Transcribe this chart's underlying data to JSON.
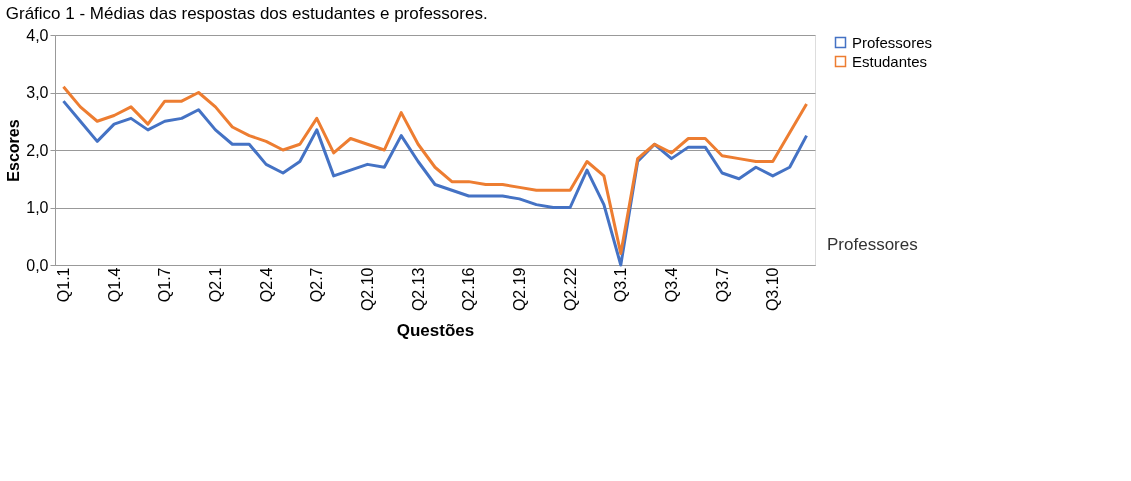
{
  "chart_data": {
    "type": "line",
    "title": "Gráfico 1 - Médias das respostas dos estudantes e professores.",
    "xlabel": "Questões",
    "ylabel": "Escores",
    "categories": [
      "Q1.1",
      null,
      null,
      "Q1.4",
      null,
      null,
      "Q1.7",
      null,
      null,
      "Q2.1",
      null,
      null,
      "Q2.4",
      null,
      null,
      "Q2.7",
      null,
      null,
      "Q2.10",
      null,
      null,
      "Q2.13",
      null,
      null,
      "Q2.16",
      null,
      null,
      "Q2.19",
      null,
      null,
      "Q2.22",
      null,
      null,
      "Q3.1",
      null,
      null,
      "Q3.4",
      null,
      null,
      "Q3.7",
      null,
      null,
      "Q3.10",
      null,
      null
    ],
    "series": [
      {
        "name": "Professores",
        "color": "#4472c4",
        "values": [
          2.85,
          2.5,
          2.15,
          2.45,
          2.55,
          2.35,
          2.5,
          2.55,
          2.7,
          2.35,
          2.1,
          2.1,
          1.75,
          1.6,
          1.8,
          2.35,
          1.55,
          1.65,
          1.75,
          1.7,
          2.25,
          1.8,
          1.4,
          1.3,
          1.2,
          1.2,
          1.2,
          1.15,
          1.05,
          1.0,
          1.0,
          1.65,
          1.05,
          0.0,
          1.8,
          2.1,
          1.85,
          2.05,
          2.05,
          1.6,
          1.5,
          1.7,
          1.55,
          1.7,
          2.25
        ]
      },
      {
        "name": "Estudantes",
        "color": "#ed7d31",
        "values": [
          3.1,
          2.75,
          2.5,
          2.6,
          2.75,
          2.45,
          2.85,
          2.85,
          3.0,
          2.75,
          2.4,
          2.25,
          2.15,
          2.0,
          2.1,
          2.55,
          1.95,
          2.2,
          2.1,
          2.0,
          2.65,
          2.1,
          1.7,
          1.45,
          1.45,
          1.4,
          1.4,
          1.35,
          1.3,
          1.3,
          1.3,
          1.8,
          1.55,
          0.2,
          1.85,
          2.1,
          1.95,
          2.2,
          2.2,
          1.9,
          1.85,
          1.8,
          1.8,
          2.3,
          2.8
        ]
      }
    ],
    "ylim": [
      0,
      4
    ],
    "yticks": [
      {
        "value": 0,
        "label": "0,0"
      },
      {
        "value": 1,
        "label": "1,0"
      },
      {
        "value": 2,
        "label": "2,0"
      },
      {
        "value": 3,
        "label": "3,0"
      },
      {
        "value": 4,
        "label": "4,0"
      }
    ],
    "annotations": [
      "Professores"
    ],
    "grid": "y",
    "legend": "right",
    "marker": "none",
    "line_style": "solid"
  }
}
